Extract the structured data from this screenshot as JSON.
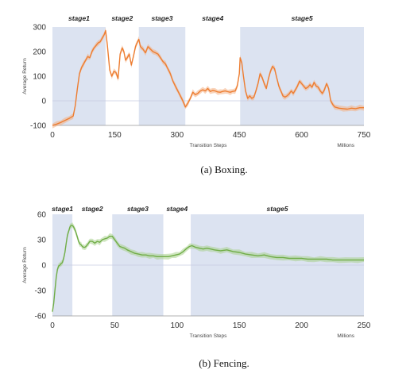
{
  "chart_data": [
    {
      "id": "boxing",
      "type": "line",
      "caption": "(a) Boxing.",
      "xlabel": "Transition Steps",
      "xunit": "Millions",
      "ylabel": "Average Return",
      "xlim": [
        0,
        750
      ],
      "ylim": [
        -100,
        300
      ],
      "xticks": [
        "0",
        "150",
        "300",
        "450",
        "600",
        "750"
      ],
      "yticks": [
        "-100",
        "0",
        "100",
        "200",
        "300"
      ],
      "line_color": "#ed7d31",
      "band_color": "#f4b183",
      "stage_shade_color": "#dce3f1",
      "stages": [
        {
          "label": "stage1",
          "start": 0,
          "end": 128,
          "shaded": true
        },
        {
          "label": "stage2",
          "start": 128,
          "end": 208,
          "shaded": false
        },
        {
          "label": "stage3",
          "start": 208,
          "end": 320,
          "shaded": true
        },
        {
          "label": "stage4",
          "start": 320,
          "end": 452,
          "shaded": false
        },
        {
          "label": "stage5",
          "start": 452,
          "end": 750,
          "shaded": true
        }
      ],
      "series": [
        {
          "x": [
            0,
            10,
            20,
            30,
            40,
            50,
            55,
            60,
            65,
            70,
            75,
            80,
            85,
            90,
            95,
            100,
            105,
            110,
            115,
            120,
            125,
            128,
            132,
            138,
            143,
            148,
            153,
            158,
            163,
            168,
            172,
            176,
            180,
            185,
            190,
            195,
            200,
            205,
            208,
            212,
            218,
            224,
            230,
            236,
            242,
            248,
            254,
            260,
            266,
            272,
            278,
            284,
            290,
            296,
            302,
            308,
            314,
            320,
            326,
            332,
            338,
            344,
            350,
            356,
            362,
            368,
            374,
            380,
            386,
            392,
            398,
            404,
            410,
            416,
            422,
            428,
            434,
            440,
            445,
            450,
            452,
            456,
            460,
            465,
            470,
            475,
            480,
            485,
            490,
            495,
            500,
            505,
            510,
            515,
            520,
            525,
            530,
            535,
            540,
            545,
            550,
            555,
            560,
            565,
            570,
            575,
            580,
            585,
            590,
            595,
            600,
            605,
            610,
            615,
            620,
            625,
            630,
            635,
            640,
            645,
            650,
            655,
            660,
            665,
            670,
            675,
            680,
            690,
            700,
            710,
            720,
            730,
            740,
            750
          ],
          "y": [
            -100,
            -95,
            -88,
            -80,
            -72,
            -62,
            -20,
            50,
            110,
            135,
            150,
            165,
            180,
            175,
            200,
            215,
            225,
            235,
            240,
            255,
            270,
            285,
            230,
            125,
            100,
            120,
            115,
            90,
            190,
            215,
            200,
            165,
            175,
            190,
            145,
            180,
            220,
            240,
            250,
            220,
            210,
            195,
            220,
            210,
            200,
            195,
            190,
            175,
            160,
            150,
            130,
            110,
            80,
            60,
            40,
            20,
            0,
            -25,
            -10,
            10,
            35,
            25,
            30,
            40,
            45,
            40,
            50,
            38,
            42,
            40,
            36,
            35,
            38,
            40,
            37,
            35,
            38,
            40,
            60,
            110,
            175,
            155,
            100,
            40,
            10,
            20,
            10,
            15,
            40,
            70,
            110,
            95,
            70,
            50,
            90,
            120,
            140,
            130,
            95,
            60,
            40,
            20,
            15,
            20,
            28,
            40,
            30,
            45,
            60,
            80,
            70,
            60,
            50,
            55,
            65,
            55,
            75,
            60,
            55,
            40,
            30,
            45,
            70,
            50,
            0,
            -15,
            -25,
            -30,
            -32,
            -34,
            -30,
            -32,
            -28,
            -28
          ]
        }
      ]
    },
    {
      "id": "fencing",
      "type": "line",
      "caption": "(b) Fencing.",
      "xlabel": "Transition Steps",
      "xunit": "Millions",
      "ylabel": "Average Return",
      "xlim": [
        0,
        250
      ],
      "ylim": [
        -60,
        60
      ],
      "xticks": [
        "0",
        "50",
        "100",
        "150",
        "200",
        "250"
      ],
      "yticks": [
        "-60",
        "-30",
        "0",
        "30",
        "60"
      ],
      "line_color": "#70ad47",
      "band_color": "#a9d18e",
      "stage_shade_color": "#dce3f1",
      "stages": [
        {
          "label": "stage1",
          "start": 0,
          "end": 16,
          "shaded": true
        },
        {
          "label": "stage2",
          "start": 16,
          "end": 48,
          "shaded": false
        },
        {
          "label": "stage3",
          "start": 48,
          "end": 89,
          "shaded": true
        },
        {
          "label": "stage4",
          "start": 89,
          "end": 111,
          "shaded": false
        },
        {
          "label": "stage5",
          "start": 111,
          "end": 250,
          "shaded": true
        }
      ],
      "series": [
        {
          "x": [
            0,
            1,
            2,
            3,
            4,
            5,
            6,
            7,
            8,
            9,
            10,
            11,
            12,
            13,
            14,
            15,
            16,
            17,
            18,
            19,
            20,
            21,
            22,
            23,
            24,
            25,
            26,
            27,
            28,
            29,
            30,
            32,
            34,
            36,
            38,
            40,
            42,
            44,
            46,
            48,
            50,
            52,
            54,
            56,
            58,
            60,
            63,
            66,
            69,
            72,
            75,
            78,
            81,
            84,
            87,
            90,
            93,
            96,
            99,
            102,
            105,
            108,
            110,
            112,
            115,
            118,
            121,
            124,
            127,
            130,
            135,
            140,
            145,
            150,
            155,
            160,
            165,
            170,
            175,
            180,
            185,
            190,
            195,
            200,
            205,
            210,
            215,
            220,
            225,
            230,
            235,
            240,
            245,
            250
          ],
          "y": [
            -55,
            -45,
            -30,
            -15,
            -5,
            -1,
            0,
            2,
            3,
            8,
            15,
            25,
            35,
            40,
            45,
            47,
            47,
            45,
            42,
            38,
            33,
            28,
            25,
            24,
            22,
            21,
            21,
            22,
            24,
            26,
            28,
            28,
            26,
            28,
            27,
            30,
            31,
            32,
            34,
            34,
            30,
            26,
            22,
            21,
            20,
            18,
            16,
            14,
            13,
            12,
            12,
            11,
            11,
            10,
            10,
            10,
            10,
            11,
            12,
            13,
            16,
            20,
            22,
            23,
            21,
            20,
            19,
            20,
            19,
            18,
            17,
            18,
            16,
            15,
            13,
            12,
            11,
            12,
            10,
            9,
            9,
            8,
            8,
            8,
            7,
            7,
            7,
            7,
            6,
            6,
            6,
            6,
            6,
            6
          ]
        }
      ]
    }
  ]
}
